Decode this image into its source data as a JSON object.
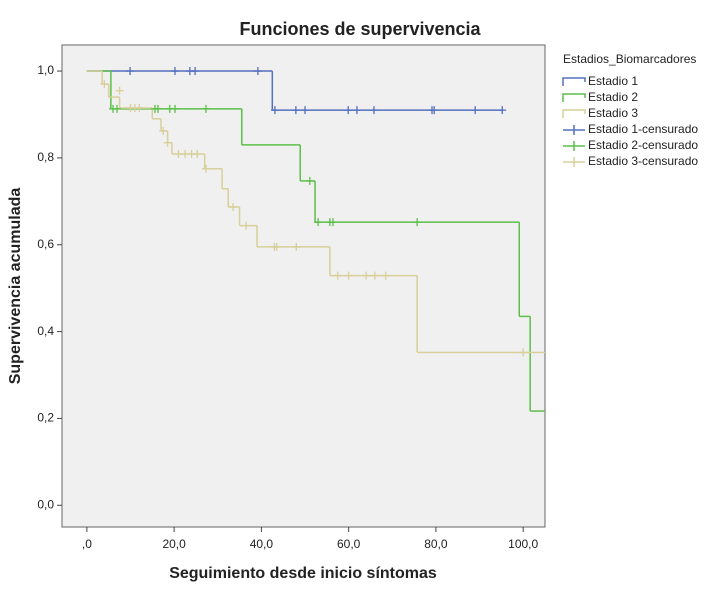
{
  "chart_data": {
    "type": "step",
    "title": "Funciones de supervivencia",
    "xlabel": "Seguimiento desde inicio síntomas",
    "ylabel": "Supervivencia acumulada",
    "legend_title": "Estadios_Biomarcadores",
    "legend": "right",
    "xlim": [
      -5.7,
      105
    ],
    "ylim": [
      -0.05,
      1.06
    ],
    "xticks": [
      {
        "value": 0,
        "label": ",0"
      },
      {
        "value": 20,
        "label": "20,0"
      },
      {
        "value": 40,
        "label": "40,0"
      },
      {
        "value": 60,
        "label": "60,0"
      },
      {
        "value": 80,
        "label": "80,0"
      },
      {
        "value": 100,
        "label": "100,0"
      }
    ],
    "yticks": [
      {
        "value": 0,
        "label": "0,0"
      },
      {
        "value": 0.2,
        "label": "0,2"
      },
      {
        "value": 0.4,
        "label": "0,4"
      },
      {
        "value": 0.6,
        "label": "0,6"
      },
      {
        "value": 0.8,
        "label": "0,8"
      },
      {
        "value": 1,
        "label": "1,0"
      }
    ],
    "series": [
      {
        "name": "Estadio 1",
        "kind": "step",
        "color": "#5470bd",
        "x": [
          0,
          42.5,
          95.5
        ],
        "values": [
          1.0,
          0.91,
          0.91
        ]
      },
      {
        "name": "Estadio 2",
        "kind": "step",
        "color": "#5cbf4a",
        "x": [
          0,
          5.5,
          35.5,
          48.9,
          52.3,
          99.1,
          101.6,
          105
        ],
        "values": [
          1.0,
          0.913,
          0.83,
          0.747,
          0.652,
          0.435,
          0.217,
          0.217
        ]
      },
      {
        "name": "Estadio 3",
        "kind": "step",
        "color": "#d8cf9a",
        "x": [
          0,
          3.5,
          5,
          7.5,
          15,
          17,
          18.5,
          19.5,
          27,
          31,
          32.4,
          35,
          39,
          55.7,
          75.7,
          105
        ],
        "values": [
          1.0,
          0.97,
          0.94,
          0.915,
          0.89,
          0.862,
          0.835,
          0.809,
          0.775,
          0.729,
          0.687,
          0.644,
          0.595,
          0.529,
          0.352,
          0.352
        ]
      },
      {
        "name": "Estadio 1-censurado",
        "kind": "censor",
        "color": "#5470bd",
        "x": [
          9.9,
          20.2,
          23.6,
          24.8,
          39.2,
          43.1,
          47.9,
          50,
          59.9,
          61.9,
          65.8,
          79.1,
          79.6,
          89,
          95.2
        ],
        "values": [
          1.0,
          1.0,
          1.0,
          1.0,
          1.0,
          0.91,
          0.91,
          0.91,
          0.91,
          0.91,
          0.91,
          0.91,
          0.91,
          0.91,
          0.91
        ]
      },
      {
        "name": "Estadio 2-censurado",
        "kind": "censor",
        "color": "#5cbf4a",
        "x": [
          6,
          6.9,
          15.6,
          16.3,
          19,
          20.2,
          27.3,
          51.1,
          53,
          55.7,
          56.4,
          75.7
        ],
        "values": [
          0.913,
          0.913,
          0.913,
          0.913,
          0.913,
          0.913,
          0.913,
          0.747,
          0.652,
          0.652,
          0.652,
          0.652
        ]
      },
      {
        "name": "Estadio 3-censurado",
        "kind": "censor",
        "color": "#d8cf9a",
        "x": [
          4,
          7.5,
          10,
          11,
          12,
          17.5,
          18.5,
          21,
          22.5,
          24,
          25.3,
          27.3,
          33.5,
          36.5,
          43,
          43.5,
          48,
          57.5,
          60,
          64,
          66,
          68.5,
          100
        ],
        "values": [
          0.97,
          0.955,
          0.915,
          0.915,
          0.915,
          0.862,
          0.835,
          0.809,
          0.809,
          0.809,
          0.809,
          0.775,
          0.687,
          0.644,
          0.595,
          0.595,
          0.595,
          0.529,
          0.529,
          0.529,
          0.529,
          0.529,
          0.352
        ]
      }
    ]
  }
}
